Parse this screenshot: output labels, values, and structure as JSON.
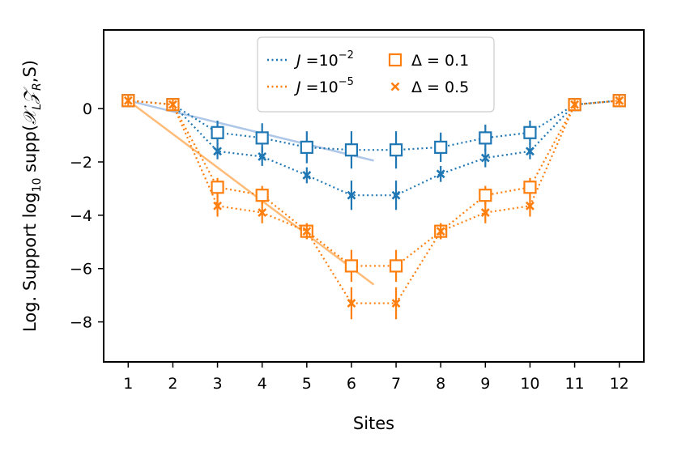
{
  "chart_data": {
    "type": "scatter",
    "title": "",
    "xlabel": "Sites",
    "ylabel": "Log. Support log₁₀ supp(𝒳ₗ𝒵ᵣ,S)",
    "xlim": [
      0.45,
      12.55
    ],
    "ylim": [
      -9.5,
      2.95
    ],
    "x_ticks": [
      1,
      2,
      3,
      4,
      5,
      6,
      7,
      8,
      9,
      10,
      11,
      12
    ],
    "y_ticks": [
      0,
      -2,
      -4,
      -6,
      -8
    ],
    "y_tick_labels": [
      "0",
      "−2",
      "−4",
      "−6",
      "−8"
    ],
    "grid": false,
    "legend_position": "top-center",
    "legend": {
      "j_entries": [
        {
          "label_prefix": "J =10",
          "exp": "−2",
          "color": "#1f77b4"
        },
        {
          "label_prefix": "J =10",
          "exp": "−5",
          "color": "#ff7f0e"
        }
      ],
      "marker_entries": [
        {
          "label": "Δ = 0.1",
          "marker": "square"
        },
        {
          "label": "Δ = 0.5",
          "marker": "x"
        }
      ]
    },
    "x": [
      1,
      2,
      3,
      4,
      5,
      6,
      7,
      8,
      9,
      10,
      11,
      12
    ],
    "series": [
      {
        "color": "#1f77b4",
        "marker": "square",
        "values": [
          0.3,
          0.15,
          -0.9,
          -1.1,
          -1.45,
          -1.55,
          -1.55,
          -1.45,
          -1.1,
          -0.9,
          0.15,
          0.3
        ],
        "err": [
          0.18,
          0.18,
          0.45,
          0.55,
          0.6,
          0.7,
          0.7,
          0.55,
          0.5,
          0.45,
          0.18,
          0.18
        ]
      },
      {
        "color": "#1f77b4",
        "marker": "x",
        "values": [
          0.3,
          0.15,
          -1.6,
          -1.8,
          -2.5,
          -3.25,
          -3.25,
          -2.45,
          -1.85,
          -1.6,
          0.15,
          0.3
        ],
        "err": [
          0.18,
          0.18,
          0.3,
          0.35,
          0.3,
          0.55,
          0.55,
          0.3,
          0.35,
          0.3,
          0.18,
          0.18
        ]
      },
      {
        "color": "#ff7f0e",
        "marker": "square",
        "values": [
          0.3,
          0.15,
          -2.95,
          -3.25,
          -4.6,
          -5.9,
          -5.9,
          -4.6,
          -3.25,
          -2.95,
          0.15,
          0.3
        ],
        "err": [
          0.18,
          0.18,
          0.35,
          0.35,
          0.3,
          0.6,
          0.6,
          0.3,
          0.35,
          0.35,
          0.18,
          0.18
        ]
      },
      {
        "color": "#ff7f0e",
        "marker": "x",
        "values": [
          0.3,
          0.15,
          -3.65,
          -3.9,
          -4.6,
          -7.3,
          -7.3,
          -4.6,
          -3.9,
          -3.65,
          0.15,
          0.3
        ],
        "err": [
          0.18,
          0.18,
          0.4,
          0.4,
          0.3,
          0.6,
          0.6,
          0.3,
          0.4,
          0.4,
          0.18,
          0.18
        ]
      }
    ],
    "fit_lines": [
      {
        "color": "#aec7e8",
        "x": [
          1,
          6.5
        ],
        "y": [
          0.3,
          -1.95
        ]
      },
      {
        "color": "#ffbb78",
        "x": [
          1,
          6.5
        ],
        "y": [
          0.3,
          -6.6
        ]
      }
    ]
  }
}
